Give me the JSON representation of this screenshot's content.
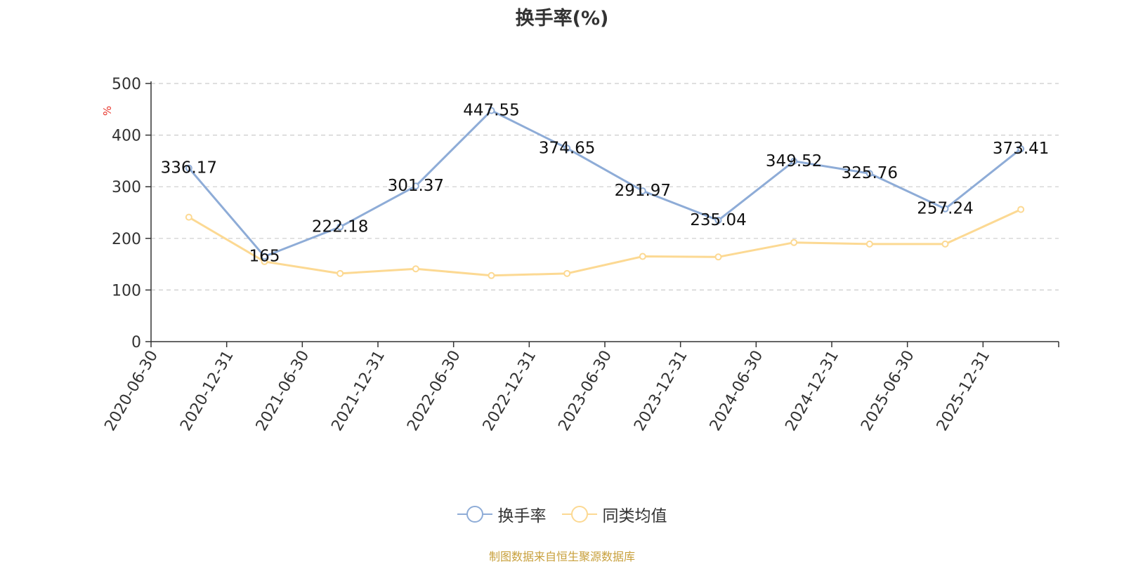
{
  "chart_data": {
    "type": "line",
    "title": "换手率(%)",
    "ylabel": "%",
    "ylim": [
      0,
      500
    ],
    "yticks": [
      0,
      100,
      200,
      300,
      400,
      500
    ],
    "grid": true,
    "legend_position": "bottom-center",
    "categories": [
      "2020-06-30",
      "2020-12-31",
      "2021-06-30",
      "2021-12-31",
      "2022-06-30",
      "2022-12-31",
      "2023-06-30",
      "2023-12-31",
      "2024-06-30",
      "2024-12-31",
      "2025-06-30",
      "2025-12-31"
    ],
    "series": [
      {
        "name": "换手率",
        "color": "#8eacd7",
        "values": [
          336.17,
          165,
          222.18,
          301.37,
          447.55,
          374.65,
          291.97,
          235.04,
          349.52,
          325.76,
          257.24,
          373.41
        ],
        "labels": [
          "336.17",
          "165",
          "222.18",
          "301.37",
          "447.55",
          "374.65",
          "291.97",
          "235.04",
          "349.52",
          "325.76",
          "257.24",
          "373.41"
        ],
        "show_labels": true
      },
      {
        "name": "同类均值",
        "color": "#fcd993",
        "values": [
          241,
          155,
          132,
          141,
          128,
          132,
          165,
          164,
          192,
          189,
          189,
          256
        ],
        "show_labels": false
      }
    ]
  },
  "source_note": "制图数据来自恒生聚源数据库"
}
